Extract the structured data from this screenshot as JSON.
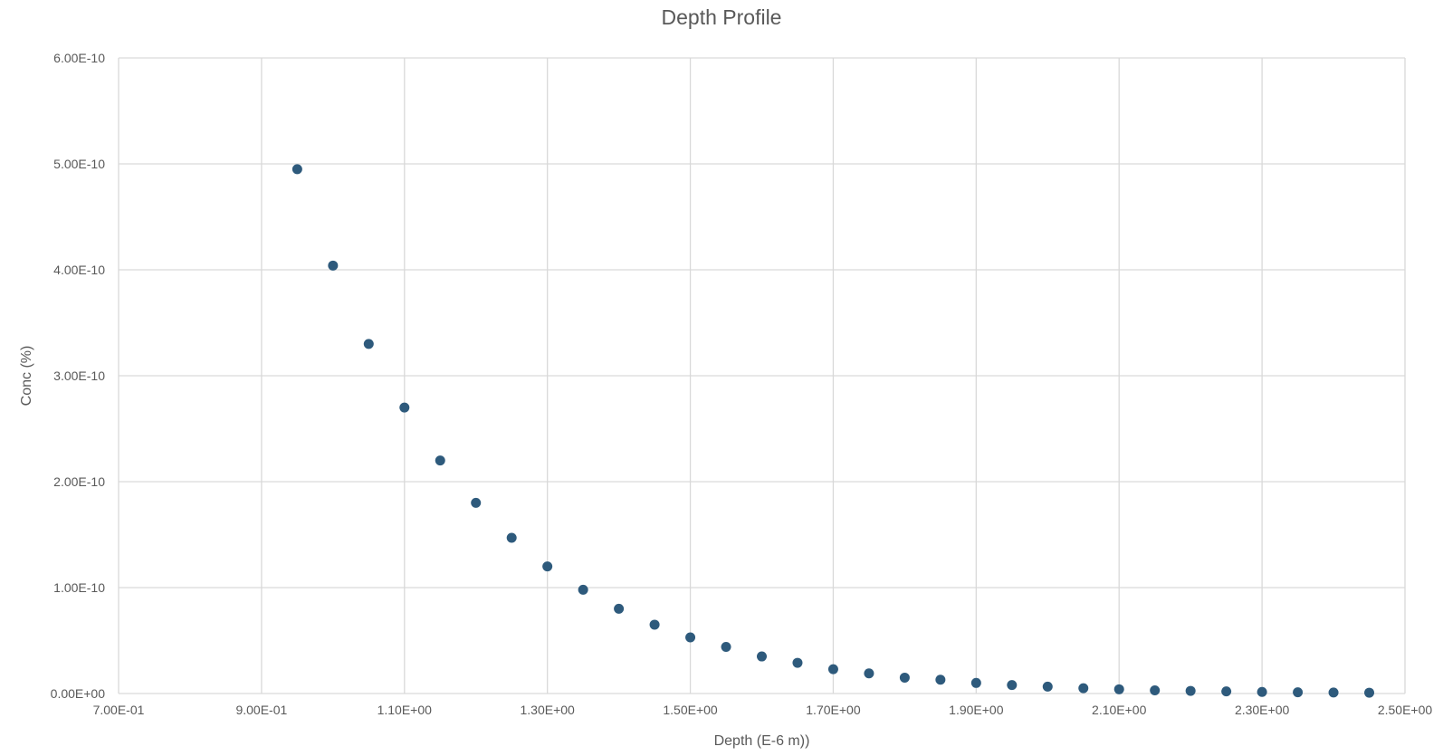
{
  "chart_data": {
    "type": "scatter",
    "title": "Depth Profile",
    "xlabel": "Depth (E-6 m))",
    "ylabel": "Conc (%)",
    "xlim": [
      0.7,
      2.5
    ],
    "ylim": [
      0,
      6e-10
    ],
    "x_ticks": [
      0.7,
      0.9,
      1.1,
      1.3,
      1.5,
      1.7,
      1.9,
      2.1,
      2.3,
      2.5
    ],
    "x_tick_labels": [
      "7.00E-01",
      "9.00E-01",
      "1.10E+00",
      "1.30E+00",
      "1.50E+00",
      "1.70E+00",
      "1.90E+00",
      "2.10E+00",
      "2.30E+00",
      "2.50E+00"
    ],
    "y_ticks": [
      0,
      1e-10,
      2e-10,
      3e-10,
      4e-10,
      5e-10,
      6e-10
    ],
    "y_tick_labels": [
      "0.00E+00",
      "1.00E-10",
      "2.00E-10",
      "3.00E-10",
      "4.00E-10",
      "5.00E-10",
      "6.00E-10"
    ],
    "grid": true,
    "legend": "none",
    "marker_color": "#2E5A7C",
    "gridline_color": "#D9D9D9",
    "series": [
      {
        "x": [
          0.95,
          1.0,
          1.05,
          1.1,
          1.15,
          1.2,
          1.25,
          1.3,
          1.35,
          1.4,
          1.45,
          1.5,
          1.55,
          1.6,
          1.65,
          1.7,
          1.75,
          1.8,
          1.85,
          1.9,
          1.95,
          2.0,
          2.05,
          2.1,
          2.15,
          2.2,
          2.25,
          2.3,
          2.35,
          2.4,
          2.45
        ],
        "y": [
          4.95e-10,
          4.04e-10,
          3.3e-10,
          2.7e-10,
          2.2e-10,
          1.8e-10,
          1.47e-10,
          1.2e-10,
          9.8e-11,
          8e-11,
          6.5e-11,
          5.3e-11,
          4.4e-11,
          3.5e-11,
          2.9e-11,
          2.3e-11,
          1.9e-11,
          1.5e-11,
          1.3e-11,
          1e-11,
          8e-12,
          6.5e-12,
          5e-12,
          4e-12,
          3e-12,
          2.5e-12,
          2e-12,
          1.5e-12,
          1.2e-12,
          1e-12,
          8e-13
        ]
      }
    ]
  }
}
